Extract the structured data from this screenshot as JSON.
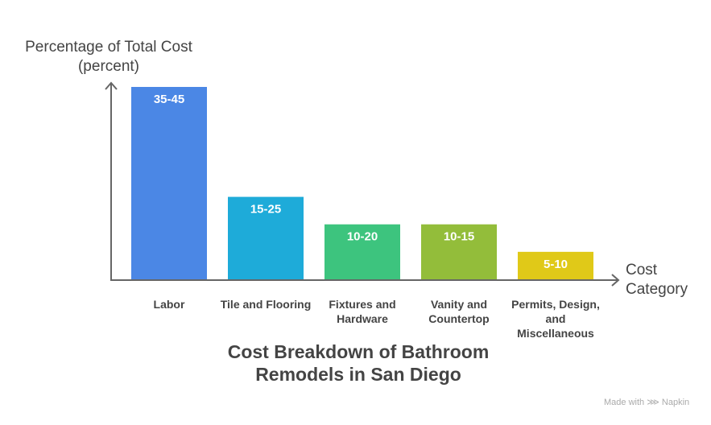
{
  "chart_data": {
    "type": "bar",
    "title": "Cost Breakdown of Bathroom Remodels in San Diego",
    "title_lines": [
      "Cost Breakdown of Bathroom",
      "Remodels in San Diego"
    ],
    "ylabel_lines": [
      "Percentage of Total Cost",
      "(percent)"
    ],
    "xlabel_lines": [
      "Cost",
      "Category"
    ],
    "categories": [
      "Labor",
      "Tile and Flooring",
      "Fixtures and Hardware",
      "Vanity and Countertop",
      "Permits, Design, and Miscellaneous"
    ],
    "category_lines": [
      [
        "Labor"
      ],
      [
        "Tile and Flooring"
      ],
      [
        "Fixtures and",
        "Hardware"
      ],
      [
        "Vanity and",
        "Countertop"
      ],
      [
        "Permits, Design,",
        "and",
        "Miscellaneous"
      ]
    ],
    "data_labels": [
      "35-45",
      "15-25",
      "10-20",
      "10-15",
      "5-10"
    ],
    "values": [
      35,
      15,
      10,
      10,
      5
    ],
    "ranges": [
      [
        35,
        45
      ],
      [
        15,
        25
      ],
      [
        10,
        20
      ],
      [
        10,
        15
      ],
      [
        5,
        10
      ]
    ],
    "colors": [
      "#4b87e5",
      "#1eabd9",
      "#3dc47e",
      "#93bd3a",
      "#e0c918"
    ],
    "ylim": [
      0,
      35
    ],
    "grid": false
  },
  "credit": "Made with ⋙ Napkin"
}
